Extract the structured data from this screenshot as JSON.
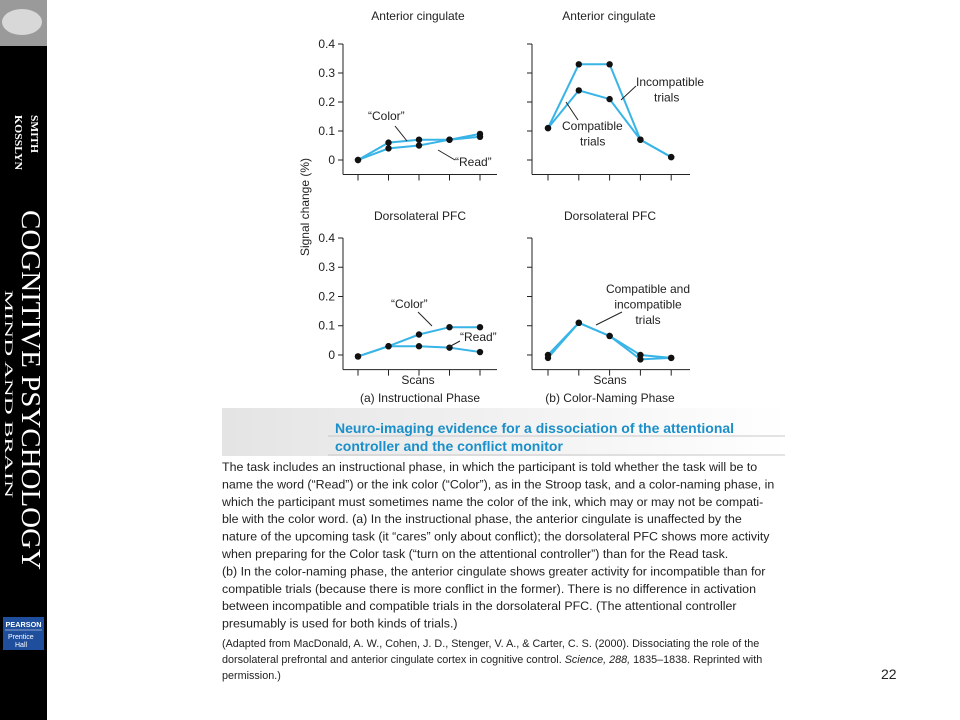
{
  "sidebar": {
    "authors": [
      "SMITH",
      "KOSSLYN"
    ],
    "title": "COGNITIVE PSYCHOLOGY",
    "subtitle": "MIND AND BRAIN",
    "publisher": {
      "name": "PEARSON",
      "imprint": [
        "Prentice",
        "Hall"
      ]
    }
  },
  "figure": {
    "y_label": "Signal change (%)",
    "x_labels": [
      "Scans",
      "Scans"
    ],
    "panel_labels": [
      "(a) Instructional Phase",
      "(b) Color-Naming Phase"
    ]
  },
  "chart_data": [
    {
      "type": "line",
      "title": "Anterior cingulate",
      "categories": [
        null,
        null,
        null,
        null,
        null
      ],
      "series": [
        {
          "color": "#39b4e6",
          "values": [
            0,
            0.06,
            0.07,
            0.07,
            0.09
          ]
        },
        {
          "color": "#39b4e6",
          "values": [
            0,
            0.04,
            0.05,
            0.07,
            0.08
          ]
        }
      ],
      "ylim": [
        -0.05,
        0.4
      ],
      "yticks": [
        0,
        0.1,
        0.2,
        0.3,
        0.4
      ],
      "ytick_labels": true,
      "annotations": [
        [
          "“Color”"
        ],
        [
          "“Read”"
        ]
      ]
    },
    {
      "type": "line",
      "title": "Anterior cingulate",
      "categories": [
        null,
        null,
        null,
        null,
        null
      ],
      "series": [
        {
          "color": "#39b4e6",
          "values": [
            0.11,
            0.33,
            0.33,
            0.07,
            0.01
          ]
        },
        {
          "color": "#39b4e6",
          "values": [
            0.11,
            0.24,
            0.21,
            0.07,
            0.01
          ]
        }
      ],
      "ylim": [
        -0.05,
        0.4
      ],
      "yticks": [
        0,
        0.1,
        0.2,
        0.3,
        0.4
      ],
      "ytick_labels": false,
      "annotations": [
        [
          "Incompatible",
          "trials"
        ],
        [
          "Compatible",
          "trials"
        ]
      ]
    },
    {
      "type": "line",
      "title": "Dorsolateral PFC",
      "categories": [
        null,
        null,
        null,
        null,
        null
      ],
      "series": [
        {
          "color": "#39b4e6",
          "values": [
            -0.005,
            0.03,
            0.07,
            0.095,
            0.095
          ]
        },
        {
          "color": "#39b4e6",
          "values": [
            -0.005,
            0.03,
            0.03,
            0.025,
            0.01
          ]
        }
      ],
      "ylim": [
        -0.05,
        0.4
      ],
      "yticks": [
        0,
        0.1,
        0.2,
        0.3,
        0.4
      ],
      "ytick_labels": true,
      "annotations": [
        [
          "“Color”"
        ],
        [
          "“Read”"
        ]
      ]
    },
    {
      "type": "line",
      "title": "Dorsolateral PFC",
      "categories": [
        null,
        null,
        null,
        null,
        null
      ],
      "series": [
        {
          "color": "#39b4e6",
          "values": [
            0,
            0.11,
            0.065,
            0,
            -0.01
          ]
        },
        {
          "color": "#39b4e6",
          "values": [
            -0.01,
            0.11,
            0.065,
            -0.015,
            -0.01
          ]
        }
      ],
      "ylim": [
        -0.05,
        0.4
      ],
      "yticks": [
        0,
        0.1,
        0.2,
        0.3,
        0.4
      ],
      "ytick_labels": false,
      "annotations": [
        [
          "Compatible and",
          "incompatible",
          "trials"
        ]
      ]
    }
  ],
  "caption": {
    "heading": [
      "Neuro-imaging evidence for a dissociation of the attentional",
      "controller and the conflict monitor"
    ],
    "lines": [
      "The task includes an instructional phase, in which the participant is told whether the task will be to",
      "name the word (“Read”) or the ink color (“Color”), as in the Stroop task, and a color-naming phase, in",
      "which the participant must sometimes name the color of the ink, which may or may not be compati-",
      "ble with the color word. (a) In the instructional phase, the anterior cingulate is unaffected by the",
      "nature of the upcoming task (it “cares” only about conflict); the dorsolateral PFC shows more activity",
      "when preparing for the Color task (“turn on the attentional controller”) than for the Read task.",
      "(b) In the color-naming phase, the anterior cingulate shows greater activity for incompatible than for",
      "compatible trials (because there is more conflict in the former). There is no difference in activation",
      "between incompatible and compatible trials in the dorsolateral PFC. (The attentional controller",
      "presumably is used for both kinds of trials.)"
    ],
    "citation": [
      [
        "(Adapted from MacDonald, A. W., Cohen, J. D., Stenger, V. A., & Carter, C. S. (2000). Dissociating the role of the"
      ],
      [
        "dorsolateral prefrontal and anterior cingulate cortex in cognitive control. ",
        "Science, 288,",
        " 1835–1838. Reprinted with"
      ],
      [
        "permission.)"
      ]
    ]
  },
  "page_number": "22"
}
